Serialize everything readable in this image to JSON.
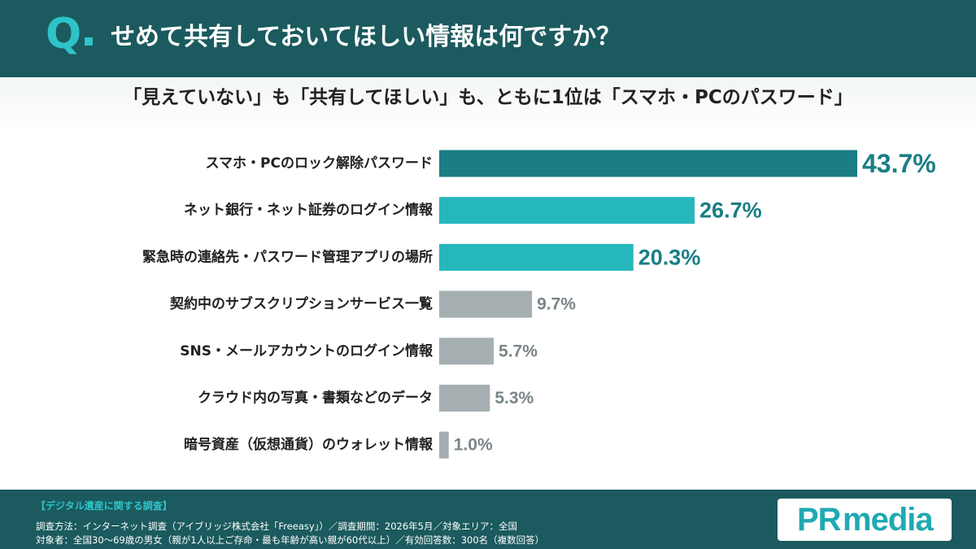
{
  "header": {
    "q_mark": "Q",
    "question": "せめて共有しておいてほしい情報は何ですか？"
  },
  "subtitle": "「見えていない」も「共有してほしい」も、ともに1位は「スマホ・PCのパスワード」",
  "chart_data": {
    "type": "bar",
    "orientation": "horizontal",
    "categories": [
      "スマホ・PCのロック解除パスワード",
      "ネット銀行・ネット証券のログイン情報",
      "緊急時の連絡先・パスワード管理アプリの場所",
      "契約中のサブスクリプションサービス一覧",
      "SNS・メールアカウントのログイン情報",
      "クラウド内の写真・書類などのデータ",
      "暗号資産（仮想通貨）のウォレット情報"
    ],
    "values": [
      43.7,
      26.7,
      20.3,
      9.7,
      5.7,
      5.3,
      1.0
    ],
    "value_labels": [
      "43.7%",
      "26.7%",
      "20.3%",
      "9.7%",
      "5.7%",
      "5.3%",
      "1.0%"
    ],
    "bar_colors": [
      "#1a7e84",
      "#26b7bd",
      "#26b7bd",
      "#a5afb2",
      "#a5afb2",
      "#a5afb2",
      "#a5afb2"
    ],
    "label_colors": [
      "#1a7e84",
      "#1a7e84",
      "#1a7e84",
      "#7a8588",
      "#7a8588",
      "#7a8588",
      "#7a8588"
    ],
    "xlim": [
      0,
      43.7
    ],
    "grid": false,
    "legend": "none"
  },
  "footer": {
    "heading": "【デジタル遺産に関する調査】",
    "line1": "調査方法：インターネット調査（アイブリッジ株式会社「Freeasy」）／調査期間：2026年5月／対象エリア：全国",
    "line2": "対象者：全国30〜69歳の男女（親が1人以上ご存命・最も年齢が高い親が60代以上）／有効回答数：300名（複数回答）"
  },
  "logo": {
    "pr": "PR",
    "media": "media"
  },
  "colors": {
    "header_bg": "#1b5a5e",
    "accent": "#2ec3c9",
    "logo": "#20a9b3"
  }
}
